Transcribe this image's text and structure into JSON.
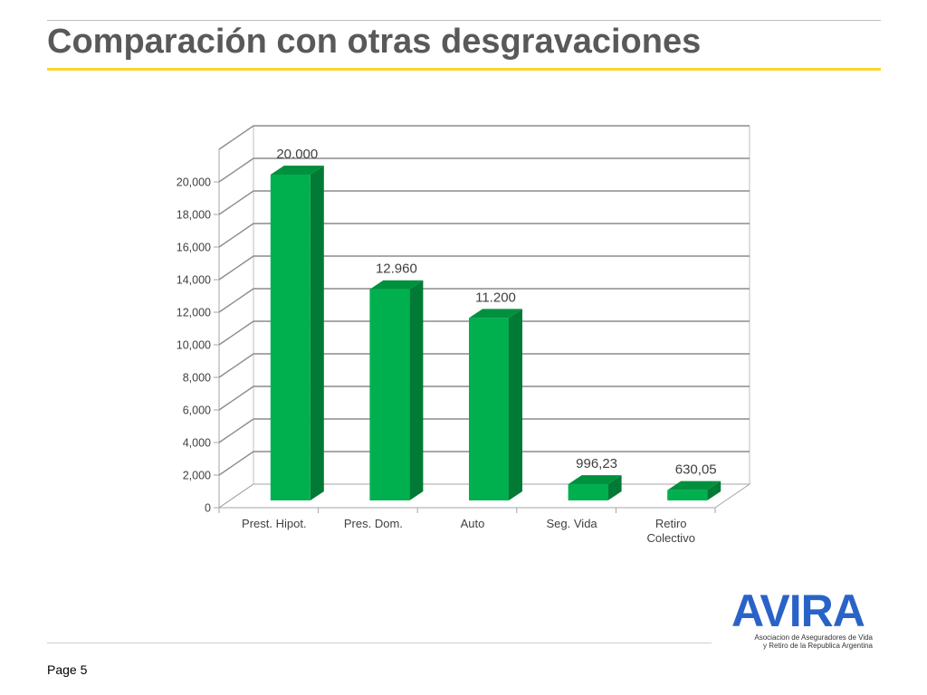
{
  "slide": {
    "title": "Comparación con otras desgravaciones",
    "page_label": "Page 5"
  },
  "logo": {
    "name": "AVIRA",
    "subtitle_line1": "Asociacion de Aseguradores de Vida",
    "subtitle_line2": "y Retiro de la Republica Argentina"
  },
  "colors": {
    "bar_front": "#00b04f",
    "bar_side": "#007a35",
    "bar_top": "#00913f",
    "gridline": "#8c8c8c",
    "title_accent": "#ffd42a",
    "logo": "#2a63c7"
  },
  "chart_data": {
    "type": "bar",
    "style": "3d-column",
    "categories": [
      "Prest. Hipot.",
      "Pres. Dom.",
      "Auto",
      "Seg. Vida",
      "Retiro Colectivo"
    ],
    "values": [
      20000,
      12960,
      11200,
      996.23,
      630.05
    ],
    "data_labels": [
      "20.000",
      "12.960",
      "11.200",
      "996,23",
      "630,05"
    ],
    "y_ticks": [
      0,
      2000,
      4000,
      6000,
      8000,
      10000,
      12000,
      14000,
      16000,
      18000,
      20000
    ],
    "y_tick_labels": [
      "0",
      "2,000",
      "4,000",
      "6,000",
      "8,000",
      "10,000",
      "12,000",
      "14,000",
      "16,000",
      "18,000",
      "20,000"
    ],
    "ylim": [
      0,
      20000
    ],
    "title": "",
    "xlabel": "",
    "ylabel": "",
    "grid": true,
    "legend": "none"
  }
}
